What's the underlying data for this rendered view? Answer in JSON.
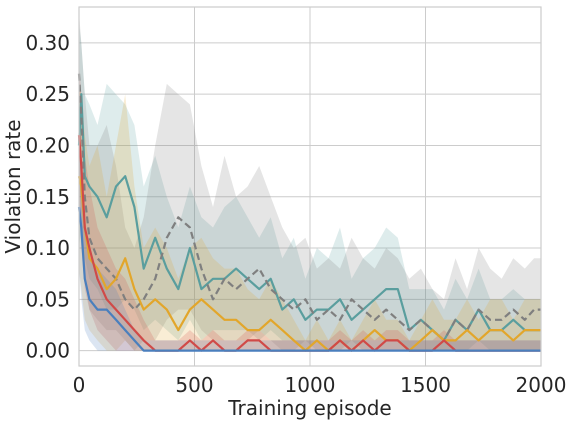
{
  "chart_data": {
    "type": "line",
    "xlabel": "Training episode",
    "ylabel": "Violation rate",
    "xlim": [
      0,
      2000
    ],
    "ylim": [
      -0.015,
      0.335
    ],
    "x_ticks": [
      0,
      500,
      1000,
      1500,
      2000
    ],
    "x_tick_labels": [
      "0",
      "500",
      "1000",
      "1500",
      "2000"
    ],
    "y_ticks": [
      0.0,
      0.05,
      0.1,
      0.15,
      0.2,
      0.25,
      0.3
    ],
    "y_tick_labels": [
      "0.00",
      "0.05",
      "0.10",
      "0.15",
      "0.20",
      "0.25",
      "0.30"
    ],
    "grid": true,
    "legend": "none",
    "series": [
      {
        "color": "#5a9e9e",
        "dash": "solid",
        "x": [
          0,
          10,
          25,
          45,
          80,
          120,
          160,
          200,
          240,
          280,
          330,
          380,
          430,
          480,
          530,
          580,
          630,
          680,
          730,
          780,
          830,
          880,
          930,
          980,
          1030,
          1080,
          1130,
          1180,
          1230,
          1280,
          1330,
          1380,
          1430,
          1480,
          1530,
          1580,
          1630,
          1680,
          1730,
          1780,
          1830,
          1880,
          1930,
          1970,
          2000
        ],
        "values": [
          0.2,
          0.25,
          0.17,
          0.16,
          0.15,
          0.13,
          0.16,
          0.17,
          0.14,
          0.08,
          0.11,
          0.08,
          0.06,
          0.1,
          0.06,
          0.07,
          0.07,
          0.08,
          0.07,
          0.06,
          0.07,
          0.04,
          0.05,
          0.03,
          0.04,
          0.04,
          0.05,
          0.03,
          0.04,
          0.05,
          0.06,
          0.06,
          0.02,
          0.03,
          0.02,
          0.01,
          0.03,
          0.02,
          0.04,
          0.02,
          0.02,
          0.03,
          0.02,
          0.02,
          0.02
        ],
        "lower": [
          0.1,
          0.12,
          0.09,
          0.07,
          0.06,
          0.04,
          0.04,
          0.05,
          0.04,
          0.02,
          0.03,
          0.02,
          0.01,
          0.03,
          0.01,
          0.02,
          0.02,
          0.02,
          0.02,
          0.01,
          0.02,
          0.01,
          0.01,
          0.0,
          0.01,
          0.01,
          0.01,
          0.0,
          0.01,
          0.01,
          0.01,
          0.01,
          0.0,
          0.0,
          0.0,
          0.0,
          0.0,
          0.0,
          0.01,
          0.0,
          0.0,
          0.0,
          0.0,
          0.0,
          0.0
        ],
        "upper": [
          0.32,
          0.3,
          0.25,
          0.24,
          0.22,
          0.26,
          0.25,
          0.24,
          0.22,
          0.16,
          0.19,
          0.15,
          0.12,
          0.16,
          0.13,
          0.12,
          0.14,
          0.15,
          0.13,
          0.11,
          0.13,
          0.09,
          0.11,
          0.07,
          0.1,
          0.09,
          0.12,
          0.07,
          0.09,
          0.1,
          0.12,
          0.11,
          0.06,
          0.06,
          0.06,
          0.04,
          0.07,
          0.05,
          0.08,
          0.05,
          0.05,
          0.06,
          0.05,
          0.05,
          0.05
        ]
      },
      {
        "color": "#7f7f7f",
        "dash": "dashed",
        "x": [
          0,
          10,
          25,
          45,
          80,
          120,
          160,
          200,
          240,
          280,
          330,
          380,
          430,
          480,
          530,
          580,
          630,
          680,
          730,
          780,
          830,
          880,
          930,
          980,
          1030,
          1080,
          1130,
          1180,
          1230,
          1280,
          1330,
          1380,
          1430,
          1480,
          1530,
          1580,
          1630,
          1680,
          1730,
          1780,
          1830,
          1880,
          1930,
          1970,
          2000
        ],
        "values": [
          0.27,
          0.23,
          0.15,
          0.11,
          0.09,
          0.08,
          0.07,
          0.05,
          0.04,
          0.05,
          0.07,
          0.11,
          0.13,
          0.12,
          0.08,
          0.05,
          0.07,
          0.06,
          0.07,
          0.08,
          0.06,
          0.05,
          0.04,
          0.05,
          0.03,
          0.04,
          0.03,
          0.05,
          0.04,
          0.03,
          0.04,
          0.03,
          0.02,
          0.03,
          0.02,
          0.01,
          0.03,
          0.02,
          0.04,
          0.03,
          0.03,
          0.04,
          0.03,
          0.04,
          0.04
        ],
        "lower": [
          0.18,
          0.12,
          0.07,
          0.04,
          0.03,
          0.02,
          0.02,
          0.01,
          0.0,
          0.01,
          0.01,
          0.03,
          0.04,
          0.04,
          0.02,
          0.01,
          0.01,
          0.01,
          0.01,
          0.02,
          0.01,
          0.0,
          0.0,
          0.01,
          0.0,
          0.0,
          0.0,
          0.01,
          0.0,
          0.0,
          0.0,
          0.0,
          0.0,
          0.0,
          0.0,
          0.0,
          0.0,
          0.0,
          0.0,
          0.0,
          0.0,
          0.0,
          0.0,
          0.0,
          0.0
        ],
        "upper": [
          0.33,
          0.3,
          0.25,
          0.2,
          0.2,
          0.22,
          0.18,
          0.12,
          0.1,
          0.13,
          0.2,
          0.26,
          0.25,
          0.24,
          0.18,
          0.14,
          0.19,
          0.15,
          0.16,
          0.18,
          0.15,
          0.12,
          0.1,
          0.11,
          0.08,
          0.09,
          0.08,
          0.11,
          0.09,
          0.08,
          0.1,
          0.09,
          0.07,
          0.08,
          0.06,
          0.05,
          0.09,
          0.06,
          0.1,
          0.08,
          0.07,
          0.09,
          0.08,
          0.09,
          0.09
        ]
      },
      {
        "color": "#e2a62b",
        "dash": "solid",
        "x": [
          0,
          10,
          25,
          45,
          80,
          120,
          160,
          200,
          240,
          280,
          330,
          380,
          430,
          480,
          530,
          580,
          630,
          680,
          730,
          780,
          830,
          880,
          930,
          980,
          1030,
          1080,
          1130,
          1180,
          1230,
          1280,
          1330,
          1380,
          1430,
          1480,
          1530,
          1580,
          1630,
          1680,
          1730,
          1780,
          1830,
          1880,
          1930,
          1970,
          2000
        ],
        "values": [
          0.17,
          0.16,
          0.12,
          0.09,
          0.08,
          0.06,
          0.07,
          0.09,
          0.06,
          0.04,
          0.05,
          0.04,
          0.02,
          0.04,
          0.05,
          0.04,
          0.03,
          0.03,
          0.02,
          0.02,
          0.03,
          0.02,
          0.01,
          0.0,
          0.01,
          0.0,
          0.01,
          0.0,
          0.01,
          0.02,
          0.01,
          0.01,
          0.0,
          0.01,
          0.02,
          0.01,
          0.01,
          0.02,
          0.01,
          0.02,
          0.02,
          0.01,
          0.02,
          0.02,
          0.02
        ],
        "lower": [
          0.08,
          0.06,
          0.03,
          0.02,
          0.01,
          0.0,
          0.0,
          0.01,
          0.0,
          0.0,
          0.0,
          0.0,
          0.0,
          0.0,
          0.0,
          0.0,
          0.0,
          0.0,
          0.0,
          0.0,
          0.0,
          0.0,
          0.0,
          0.0,
          0.0,
          0.0,
          0.0,
          0.0,
          0.0,
          0.0,
          0.0,
          0.0,
          0.0,
          0.0,
          0.0,
          0.0,
          0.0,
          0.0,
          0.0,
          0.0,
          0.0,
          0.0,
          0.0,
          0.0,
          0.0
        ],
        "upper": [
          0.26,
          0.25,
          0.21,
          0.18,
          0.2,
          0.15,
          0.2,
          0.25,
          0.16,
          0.1,
          0.12,
          0.1,
          0.07,
          0.1,
          0.11,
          0.09,
          0.08,
          0.08,
          0.06,
          0.05,
          0.07,
          0.05,
          0.03,
          0.01,
          0.03,
          0.01,
          0.03,
          0.01,
          0.03,
          0.05,
          0.03,
          0.03,
          0.01,
          0.03,
          0.05,
          0.03,
          0.03,
          0.05,
          0.03,
          0.05,
          0.05,
          0.03,
          0.05,
          0.05,
          0.05
        ]
      },
      {
        "color": "#d04a48",
        "dash": "solid",
        "x": [
          0,
          10,
          25,
          45,
          80,
          120,
          160,
          200,
          240,
          280,
          330,
          380,
          430,
          480,
          530,
          580,
          630,
          680,
          730,
          780,
          830,
          880,
          930,
          980,
          1030,
          1080,
          1130,
          1180,
          1230,
          1280,
          1330,
          1380,
          1430,
          1480,
          1530,
          1580,
          1630,
          1680,
          1730,
          1780,
          1830,
          1880,
          1930,
          1970,
          2000
        ],
        "values": [
          0.21,
          0.18,
          0.12,
          0.1,
          0.07,
          0.05,
          0.04,
          0.03,
          0.02,
          0.01,
          0.0,
          0.0,
          0.0,
          0.01,
          0.0,
          0.01,
          0.0,
          0.0,
          0.01,
          0.01,
          0.0,
          0.0,
          0.0,
          0.0,
          0.0,
          0.0,
          0.01,
          0.0,
          0.01,
          0.0,
          0.01,
          0.01,
          0.0,
          0.0,
          0.0,
          0.01,
          0.0,
          0.0,
          0.0,
          0.0,
          0.0,
          0.0,
          0.0,
          0.0,
          0.0
        ],
        "lower": [
          0.14,
          0.1,
          0.06,
          0.04,
          0.02,
          0.01,
          0.0,
          0.0,
          0.0,
          0.0,
          0.0,
          0.0,
          0.0,
          0.0,
          0.0,
          0.0,
          0.0,
          0.0,
          0.0,
          0.0,
          0.0,
          0.0,
          0.0,
          0.0,
          0.0,
          0.0,
          0.0,
          0.0,
          0.0,
          0.0,
          0.0,
          0.0,
          0.0,
          0.0,
          0.0,
          0.0,
          0.0,
          0.0,
          0.0,
          0.0,
          0.0,
          0.0,
          0.0,
          0.0,
          0.0
        ],
        "upper": [
          0.28,
          0.25,
          0.19,
          0.16,
          0.12,
          0.1,
          0.08,
          0.07,
          0.05,
          0.03,
          0.01,
          0.01,
          0.01,
          0.02,
          0.01,
          0.02,
          0.01,
          0.01,
          0.02,
          0.02,
          0.01,
          0.01,
          0.01,
          0.01,
          0.01,
          0.01,
          0.02,
          0.01,
          0.02,
          0.01,
          0.02,
          0.02,
          0.01,
          0.01,
          0.01,
          0.02,
          0.01,
          0.01,
          0.01,
          0.01,
          0.01,
          0.01,
          0.01,
          0.01,
          0.01
        ]
      },
      {
        "color": "#4a7fbd",
        "dash": "solid",
        "x": [
          0,
          10,
          25,
          45,
          80,
          120,
          160,
          200,
          240,
          280,
          330,
          380,
          430,
          480,
          530,
          580,
          630,
          680,
          730,
          780,
          830,
          880,
          930,
          980,
          1030,
          1080,
          1130,
          1180,
          1230,
          1280,
          1330,
          1380,
          1430,
          1480,
          1530,
          1580,
          1630,
          1680,
          1730,
          1780,
          1830,
          1880,
          1930,
          1970,
          2000
        ],
        "values": [
          0.14,
          0.12,
          0.07,
          0.05,
          0.04,
          0.04,
          0.03,
          0.02,
          0.01,
          0.0,
          0.0,
          0.0,
          0.0,
          0.0,
          0.0,
          0.0,
          0.0,
          0.0,
          0.0,
          0.0,
          0.0,
          0.0,
          0.0,
          0.0,
          0.0,
          0.0,
          0.0,
          0.0,
          0.0,
          0.0,
          0.0,
          0.0,
          0.0,
          0.0,
          0.0,
          0.0,
          0.0,
          0.0,
          0.0,
          0.0,
          0.0,
          0.0,
          0.0,
          0.0,
          0.0
        ],
        "lower": [
          0.08,
          0.05,
          0.02,
          0.01,
          0.0,
          0.0,
          0.0,
          0.0,
          0.0,
          0.0,
          0.0,
          0.0,
          0.0,
          0.0,
          0.0,
          0.0,
          0.0,
          0.0,
          0.0,
          0.0,
          0.0,
          0.0,
          0.0,
          0.0,
          0.0,
          0.0,
          0.0,
          0.0,
          0.0,
          0.0,
          0.0,
          0.0,
          0.0,
          0.0,
          0.0,
          0.0,
          0.0,
          0.0,
          0.0,
          0.0,
          0.0,
          0.0,
          0.0,
          0.0,
          0.0
        ],
        "upper": [
          0.21,
          0.19,
          0.12,
          0.09,
          0.08,
          0.07,
          0.06,
          0.04,
          0.02,
          0.01,
          0.01,
          0.01,
          0.01,
          0.01,
          0.01,
          0.01,
          0.01,
          0.01,
          0.01,
          0.01,
          0.01,
          0.01,
          0.01,
          0.01,
          0.01,
          0.01,
          0.01,
          0.01,
          0.01,
          0.01,
          0.01,
          0.01,
          0.01,
          0.01,
          0.01,
          0.01,
          0.01,
          0.01,
          0.01,
          0.01,
          0.01,
          0.01,
          0.01,
          0.01,
          0.01
        ]
      }
    ]
  }
}
